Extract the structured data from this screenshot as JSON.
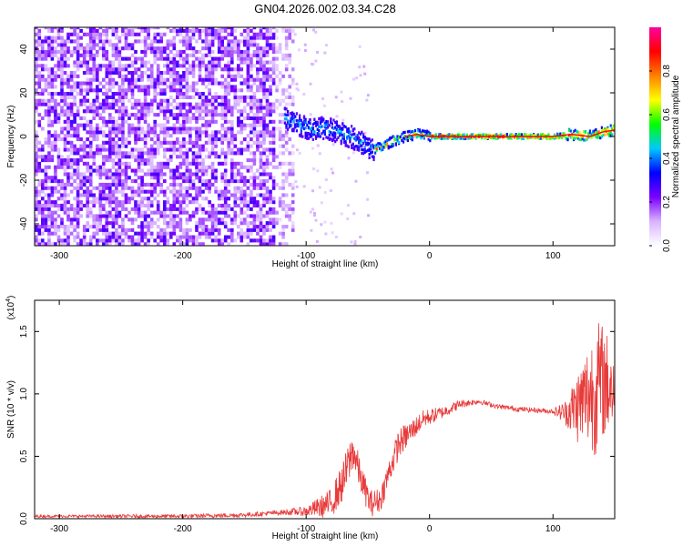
{
  "title": "GN04.2026.002.03.34.C28",
  "colors": {
    "snr_line": "#e83a3a",
    "axis": "#000000",
    "background": "#ffffff"
  },
  "chart_data": [
    {
      "type": "heatmap",
      "title": "",
      "xlabel": "Height of straight line (km)",
      "ylabel": "Frequency (Hz)",
      "xlim": [
        -320,
        150
      ],
      "ylim": [
        -50,
        50
      ],
      "x_ticks": [
        {
          "value": -300,
          "label": "-300"
        },
        {
          "value": -200,
          "label": "-200"
        },
        {
          "value": -100,
          "label": "-100"
        },
        {
          "value": 0,
          "label": "0"
        },
        {
          "value": 100,
          "label": "100"
        }
      ],
      "y_ticks": [
        {
          "value": -40,
          "label": "-40"
        },
        {
          "value": -20,
          "label": "-20"
        },
        {
          "value": 0,
          "label": "0"
        },
        {
          "value": 20,
          "label": "20"
        },
        {
          "value": 40,
          "label": "40"
        }
      ],
      "colorbar": {
        "label": "Normalized spectral amplitude",
        "range": [
          0,
          1
        ],
        "ticks": [
          {
            "value": 0.0,
            "label": "0.0"
          },
          {
            "value": 0.2,
            "label": "0.2"
          },
          {
            "value": 0.4,
            "label": "0.4"
          },
          {
            "value": 0.6,
            "label": "0.6"
          },
          {
            "value": 0.8,
            "label": "0.8"
          }
        ],
        "colormap": [
          "#ffffff",
          "#d9b3ff",
          "#7a00ff",
          "#0000ff",
          "#00c8ff",
          "#00ff00",
          "#ffff00",
          "#ff8000",
          "#ff0000",
          "#ff00a0"
        ]
      },
      "signal_track": [
        [
          -118,
          8
        ],
        [
          -105,
          5
        ],
        [
          -95,
          3
        ],
        [
          -85,
          4
        ],
        [
          -75,
          2
        ],
        [
          -65,
          0
        ],
        [
          -55,
          -3
        ],
        [
          -48,
          -6
        ],
        [
          -40,
          -5
        ],
        [
          -30,
          -2
        ],
        [
          -20,
          0
        ],
        [
          -10,
          1
        ],
        [
          0,
          0
        ],
        [
          25,
          0
        ],
        [
          50,
          0
        ],
        [
          75,
          0
        ],
        [
          100,
          0
        ],
        [
          115,
          1
        ],
        [
          130,
          0
        ],
        [
          140,
          2
        ],
        [
          150,
          3
        ]
      ]
    },
    {
      "type": "line",
      "title": "",
      "xlabel": "Height of straight line (km)",
      "ylabel": "SNR (10 * v/v)",
      "y_multiplier_label": "(x10",
      "y_multiplier_exp": "4",
      "xlim": [
        -320,
        150
      ],
      "ylim": [
        0,
        1.75
      ],
      "x_ticks": [
        {
          "value": -300,
          "label": "-300"
        },
        {
          "value": -200,
          "label": "-200"
        },
        {
          "value": -100,
          "label": "-100"
        },
        {
          "value": 0,
          "label": "0"
        },
        {
          "value": 100,
          "label": "100"
        }
      ],
      "y_ticks": [
        {
          "value": 0.0,
          "label": "0.0"
        },
        {
          "value": 0.5,
          "label": "0.5"
        },
        {
          "value": 1.0,
          "label": "1.0"
        },
        {
          "value": 1.5,
          "label": "1.5"
        }
      ],
      "series": [
        {
          "envelope": [
            [
              -320,
              0.02
            ],
            [
              -250,
              0.02
            ],
            [
              -200,
              0.02
            ],
            [
              -150,
              0.03
            ],
            [
              -120,
              0.05
            ],
            [
              -100,
              0.06
            ],
            [
              -80,
              0.12
            ],
            [
              -70,
              0.3
            ],
            [
              -62,
              0.55
            ],
            [
              -55,
              0.3
            ],
            [
              -48,
              0.12
            ],
            [
              -40,
              0.15
            ],
            [
              -32,
              0.4
            ],
            [
              -25,
              0.6
            ],
            [
              -15,
              0.7
            ],
            [
              -5,
              0.8
            ],
            [
              10,
              0.85
            ],
            [
              25,
              0.92
            ],
            [
              40,
              0.94
            ],
            [
              55,
              0.9
            ],
            [
              70,
              0.88
            ],
            [
              85,
              0.87
            ],
            [
              100,
              0.86
            ],
            [
              110,
              0.85
            ],
            [
              120,
              0.9
            ],
            [
              130,
              1.0
            ],
            [
              140,
              1.1
            ],
            [
              150,
              1.05
            ]
          ],
          "noise_amplitude": [
            [
              -320,
              0.01
            ],
            [
              -120,
              0.02
            ],
            [
              -100,
              0.04
            ],
            [
              -80,
              0.12
            ],
            [
              -65,
              0.18
            ],
            [
              -55,
              0.12
            ],
            [
              -40,
              0.1
            ],
            [
              -25,
              0.12
            ],
            [
              -10,
              0.08
            ],
            [
              10,
              0.05
            ],
            [
              40,
              0.02
            ],
            [
              100,
              0.02
            ],
            [
              110,
              0.1
            ],
            [
              120,
              0.3
            ],
            [
              135,
              0.55
            ],
            [
              145,
              0.4
            ],
            [
              150,
              0.35
            ]
          ]
        }
      ]
    }
  ]
}
